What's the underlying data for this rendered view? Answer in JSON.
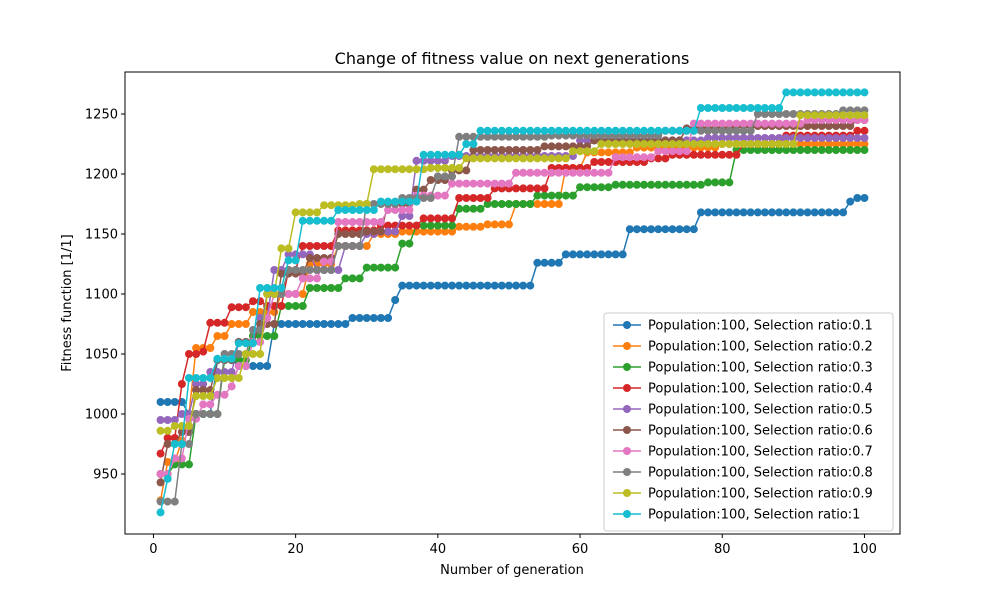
{
  "chart_data": {
    "type": "line",
    "title": "Change of fitness value on next generations",
    "xlabel": "Number of generation",
    "ylabel": "Fitness function [1/1]",
    "xlim": [
      -4,
      105
    ],
    "ylim": [
      900,
      1285
    ],
    "xticks": [
      0,
      20,
      40,
      60,
      80,
      100
    ],
    "yticks": [
      950,
      1000,
      1050,
      1100,
      1150,
      1200,
      1250
    ],
    "grid": false,
    "legend_position": "lower-right",
    "marker": "circle",
    "series": [
      {
        "name": "Population:100, Selection ratio:0.1",
        "color": "#1f77b4",
        "steps": [
          [
            1,
            1010
          ],
          [
            5,
            1000
          ],
          [
            9,
            1045
          ],
          [
            12,
            1040
          ],
          [
            17,
            1075
          ],
          [
            28,
            1080
          ],
          [
            34,
            1095
          ],
          [
            35,
            1107
          ],
          [
            54,
            1126
          ],
          [
            58,
            1133
          ],
          [
            67,
            1154
          ],
          [
            77,
            1168
          ],
          [
            98,
            1177
          ],
          [
            99,
            1180
          ]
        ]
      },
      {
        "name": "Population:100, Selection ratio:0.2",
        "color": "#ff7f0e",
        "steps": [
          [
            1,
            928
          ],
          [
            2,
            960
          ],
          [
            4,
            978
          ],
          [
            5,
            1000
          ],
          [
            6,
            1055
          ],
          [
            9,
            1065
          ],
          [
            11,
            1075
          ],
          [
            14,
            1085
          ],
          [
            18,
            1100
          ],
          [
            22,
            1125
          ],
          [
            26,
            1140
          ],
          [
            31,
            1150
          ],
          [
            35,
            1152
          ],
          [
            43,
            1156
          ],
          [
            47,
            1158
          ],
          [
            51,
            1175
          ],
          [
            58,
            1205
          ],
          [
            61,
            1218
          ],
          [
            68,
            1222
          ],
          [
            80,
            1225
          ]
        ]
      },
      {
        "name": "Population:100, Selection ratio:0.3",
        "color": "#2ca02c",
        "steps": [
          [
            1,
            950
          ],
          [
            3,
            958
          ],
          [
            6,
            1000
          ],
          [
            10,
            1045
          ],
          [
            14,
            1065
          ],
          [
            18,
            1090
          ],
          [
            22,
            1105
          ],
          [
            27,
            1113
          ],
          [
            30,
            1122
          ],
          [
            35,
            1142
          ],
          [
            37,
            1157
          ],
          [
            43,
            1171
          ],
          [
            47,
            1175
          ],
          [
            54,
            1182
          ],
          [
            60,
            1189
          ],
          [
            65,
            1191
          ],
          [
            78,
            1193
          ],
          [
            82,
            1220
          ]
        ]
      },
      {
        "name": "Population:100, Selection ratio:0.4",
        "color": "#d62728",
        "steps": [
          [
            1,
            967
          ],
          [
            2,
            980
          ],
          [
            4,
            1025
          ],
          [
            5,
            1050
          ],
          [
            7,
            1052
          ],
          [
            8,
            1076
          ],
          [
            11,
            1089
          ],
          [
            14,
            1094
          ],
          [
            16,
            1090
          ],
          [
            19,
            1120
          ],
          [
            21,
            1140
          ],
          [
            26,
            1153
          ],
          [
            32,
            1157
          ],
          [
            38,
            1163
          ],
          [
            43,
            1180
          ],
          [
            48,
            1188
          ],
          [
            56,
            1205
          ],
          [
            62,
            1210
          ],
          [
            70,
            1213
          ],
          [
            73,
            1216
          ],
          [
            83,
            1225
          ],
          [
            89,
            1232
          ],
          [
            99,
            1236
          ]
        ]
      },
      {
        "name": "Population:100, Selection ratio:0.5",
        "color": "#9467bd",
        "steps": [
          [
            1,
            995
          ],
          [
            4,
            1000
          ],
          [
            6,
            1025
          ],
          [
            8,
            1035
          ],
          [
            12,
            1060
          ],
          [
            15,
            1080
          ],
          [
            17,
            1120
          ],
          [
            19,
            1133
          ],
          [
            23,
            1120
          ],
          [
            27,
            1140
          ],
          [
            30,
            1150
          ],
          [
            32,
            1152
          ],
          [
            35,
            1165
          ],
          [
            37,
            1211
          ],
          [
            42,
            1215
          ],
          [
            46,
            1215
          ],
          [
            60,
            1228
          ],
          [
            78,
            1230
          ]
        ]
      },
      {
        "name": "Population:100, Selection ratio:0.6",
        "color": "#8c564b",
        "steps": [
          [
            1,
            943
          ],
          [
            2,
            975
          ],
          [
            4,
            985
          ],
          [
            6,
            1020
          ],
          [
            9,
            1045
          ],
          [
            12,
            1060
          ],
          [
            15,
            1075
          ],
          [
            18,
            1117
          ],
          [
            22,
            1130
          ],
          [
            26,
            1150
          ],
          [
            30,
            1152
          ],
          [
            33,
            1175
          ],
          [
            37,
            1187
          ],
          [
            39,
            1195
          ],
          [
            42,
            1203
          ],
          [
            45,
            1220
          ],
          [
            55,
            1223
          ],
          [
            62,
            1228
          ],
          [
            75,
            1238
          ],
          [
            82,
            1240
          ],
          [
            99,
            1245
          ]
        ]
      },
      {
        "name": "Population:100, Selection ratio:0.7",
        "color": "#e377c2",
        "steps": [
          [
            1,
            950
          ],
          [
            3,
            963
          ],
          [
            5,
            996
          ],
          [
            7,
            1008
          ],
          [
            9,
            1016
          ],
          [
            11,
            1023
          ],
          [
            12,
            1040
          ],
          [
            14,
            1060
          ],
          [
            16,
            1080
          ],
          [
            17,
            1100
          ],
          [
            21,
            1113
          ],
          [
            24,
            1127
          ],
          [
            26,
            1160
          ],
          [
            33,
            1170
          ],
          [
            37,
            1182
          ],
          [
            42,
            1192
          ],
          [
            51,
            1201
          ],
          [
            65,
            1214
          ],
          [
            71,
            1219
          ],
          [
            76,
            1242
          ],
          [
            92,
            1245
          ]
        ]
      },
      {
        "name": "Population:100, Selection ratio:0.8",
        "color": "#7f7f7f",
        "steps": [
          [
            1,
            927
          ],
          [
            4,
            975
          ],
          [
            6,
            1000
          ],
          [
            10,
            1050
          ],
          [
            14,
            1070
          ],
          [
            16,
            1100
          ],
          [
            19,
            1120
          ],
          [
            26,
            1140
          ],
          [
            30,
            1175
          ],
          [
            35,
            1180
          ],
          [
            40,
            1198
          ],
          [
            43,
            1231
          ],
          [
            56,
            1232
          ],
          [
            72,
            1236
          ],
          [
            85,
            1250
          ],
          [
            97,
            1253
          ]
        ]
      },
      {
        "name": "Population:100, Selection ratio:0.9",
        "color": "#bcbd22",
        "steps": [
          [
            1,
            986
          ],
          [
            3,
            990
          ],
          [
            6,
            1015
          ],
          [
            9,
            1030
          ],
          [
            13,
            1050
          ],
          [
            16,
            1100
          ],
          [
            18,
            1138
          ],
          [
            20,
            1168
          ],
          [
            24,
            1174
          ],
          [
            29,
            1175
          ],
          [
            31,
            1204
          ],
          [
            39,
            1205
          ],
          [
            44,
            1213
          ],
          [
            59,
            1219
          ],
          [
            63,
            1225
          ],
          [
            91,
            1249
          ]
        ]
      },
      {
        "name": "Population:100, Selection ratio:1",
        "color": "#17becf",
        "steps": [
          [
            1,
            918
          ],
          [
            2,
            946
          ],
          [
            3,
            975
          ],
          [
            5,
            1030
          ],
          [
            9,
            1046
          ],
          [
            12,
            1059
          ],
          [
            15,
            1105
          ],
          [
            19,
            1128
          ],
          [
            21,
            1161
          ],
          [
            26,
            1170
          ],
          [
            32,
            1177
          ],
          [
            38,
            1216
          ],
          [
            44,
            1225
          ],
          [
            46,
            1236
          ],
          [
            77,
            1255
          ],
          [
            89,
            1268
          ]
        ]
      }
    ]
  }
}
